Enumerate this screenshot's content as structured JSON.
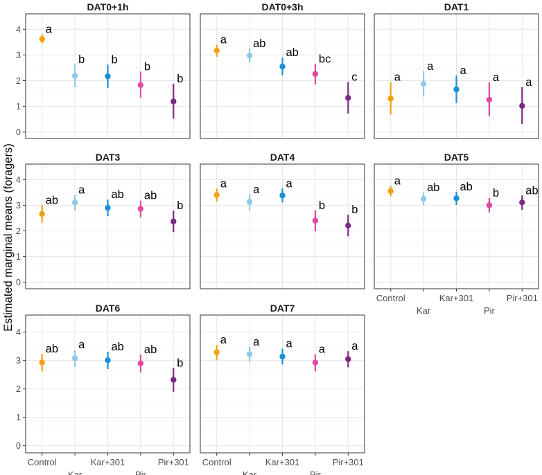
{
  "chart_data": {
    "type": "scatter",
    "subtype": "point-range faceted (estimated marginal means with confidence intervals)",
    "ylabel": "Estimated marginal means (foragers)",
    "xlabel": "",
    "ylim": [
      -0.25,
      4.6
    ],
    "yticks": [
      0,
      1,
      2,
      3,
      4
    ],
    "grid": true,
    "legend": "none",
    "categories": [
      "Control",
      "Kar",
      "Kar+301",
      "Pir",
      "Pir+301"
    ],
    "colors": {
      "Control": "#f2a20f",
      "Kar": "#8ecae6",
      "Kar+301": "#1a8fd6",
      "Pir": "#e04aa0",
      "Pir+301": "#7a2a82"
    },
    "panels": [
      {
        "title": "DAT0+1h",
        "means": [
          3.62,
          2.19,
          2.17,
          1.83,
          1.19
        ],
        "lower": [
          3.45,
          1.75,
          1.72,
          1.33,
          0.52
        ],
        "upper": [
          3.8,
          2.63,
          2.62,
          2.35,
          1.88
        ],
        "letters": [
          "a",
          "b",
          "b",
          "b",
          "b"
        ]
      },
      {
        "title": "DAT0+3h",
        "means": [
          3.17,
          2.97,
          2.55,
          2.26,
          1.33
        ],
        "lower": [
          2.93,
          2.7,
          2.21,
          1.85,
          0.72
        ],
        "upper": [
          3.4,
          3.25,
          2.9,
          2.65,
          1.95
        ],
        "letters": [
          "a",
          "ab",
          "ab",
          "bc",
          "c"
        ]
      },
      {
        "title": "DAT1",
        "means": [
          1.3,
          1.88,
          1.66,
          1.26,
          1.02
        ],
        "lower": [
          0.68,
          1.38,
          1.13,
          0.62,
          0.31
        ],
        "upper": [
          1.95,
          2.37,
          2.2,
          1.93,
          1.75
        ],
        "letters": [
          "a",
          "a",
          "a",
          "a",
          "a"
        ]
      },
      {
        "title": "DAT3",
        "means": [
          2.66,
          3.1,
          2.9,
          2.86,
          2.37
        ],
        "lower": [
          2.32,
          2.8,
          2.58,
          2.53,
          1.95
        ],
        "upper": [
          3.0,
          3.4,
          3.22,
          3.18,
          2.79
        ],
        "letters": [
          "ab",
          "a",
          "ab",
          "ab",
          "b"
        ]
      },
      {
        "title": "DAT4",
        "means": [
          3.4,
          3.13,
          3.38,
          2.4,
          2.21
        ],
        "lower": [
          3.14,
          2.82,
          3.11,
          1.98,
          1.79
        ],
        "upper": [
          3.65,
          3.42,
          3.65,
          2.8,
          2.63
        ],
        "letters": [
          "a",
          "a",
          "a",
          "b",
          "b"
        ]
      },
      {
        "title": "DAT5",
        "means": [
          3.55,
          3.25,
          3.27,
          3.0,
          3.11
        ],
        "lower": [
          3.35,
          3.01,
          3.01,
          2.72,
          2.82
        ],
        "upper": [
          3.75,
          3.5,
          3.52,
          3.28,
          3.38
        ],
        "letters": [
          "a",
          "ab",
          "ab",
          "b",
          "ab"
        ]
      },
      {
        "title": "DAT6",
        "means": [
          2.93,
          3.08,
          3.01,
          2.9,
          2.32
        ],
        "lower": [
          2.62,
          2.77,
          2.7,
          2.58,
          1.9
        ],
        "upper": [
          3.23,
          3.38,
          3.31,
          3.21,
          2.74
        ],
        "letters": [
          "ab",
          "a",
          "ab",
          "ab",
          "b"
        ]
      },
      {
        "title": "DAT7",
        "means": [
          3.29,
          3.22,
          3.14,
          2.93,
          3.05
        ],
        "lower": [
          3.02,
          2.95,
          2.86,
          2.62,
          2.76
        ],
        "upper": [
          3.55,
          3.48,
          3.42,
          3.22,
          3.33
        ],
        "letters": [
          "a",
          "a",
          "a",
          "a",
          "a"
        ]
      }
    ]
  }
}
